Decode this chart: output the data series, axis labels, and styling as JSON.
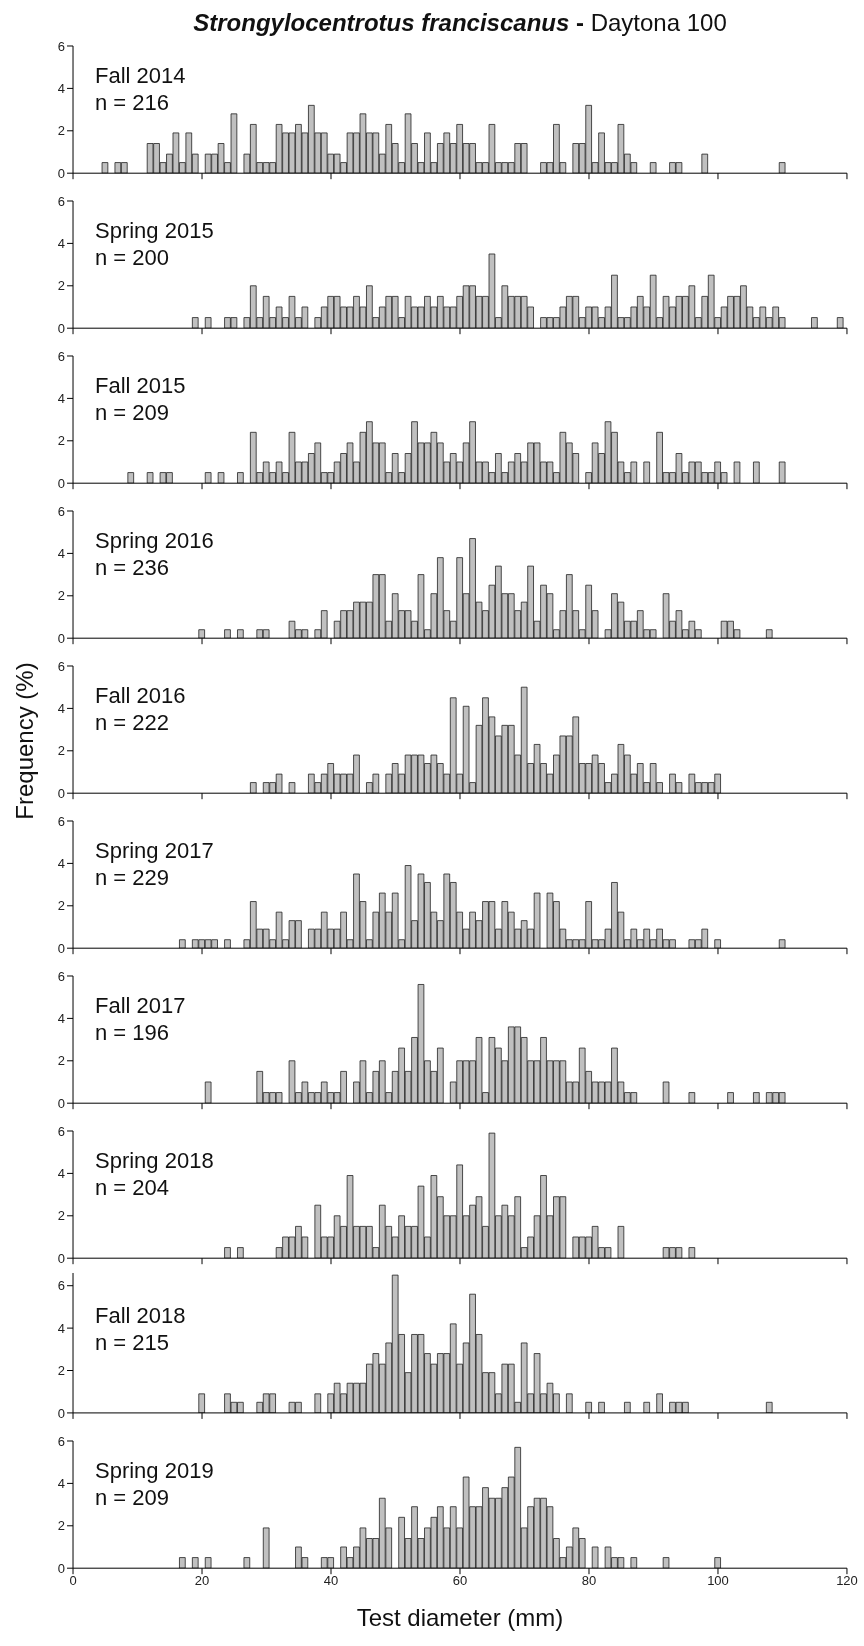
{
  "chart_data": [
    {
      "type": "histogram",
      "title": "Strongylocentrotus franciscanus - Daytona 100",
      "annotations": [
        "Fall 2014",
        "n = 216"
      ],
      "color": "#c0c0c0",
      "xlim": [
        0,
        120
      ],
      "xticks": [
        0,
        20,
        40,
        60,
        80,
        100,
        120
      ],
      "ylim": [
        0,
        6
      ],
      "yticks": [
        0,
        2,
        4,
        6
      ],
      "tick_labels": "y",
      "bins": [
        0.5,
        1.5,
        2.5,
        3.5,
        4.5,
        5.5,
        6.5,
        7.5,
        8.5,
        9.5,
        10.5,
        11.5,
        12.5,
        13.5,
        14.5,
        15.5,
        16.5,
        17.5,
        18.5,
        19.5,
        20.5,
        21.5,
        22.5,
        23.5,
        24.5,
        25.5,
        26.5,
        27.5,
        28.5,
        29.5,
        30.5,
        31.5,
        32.5,
        33.5,
        34.5,
        35.5,
        36.5,
        37.5,
        38.5,
        39.5,
        40.5,
        41.5,
        42.5,
        43.5,
        44.5,
        45.5,
        46.5,
        47.5,
        48.5,
        49.5,
        50.5,
        51.5,
        52.5,
        53.5,
        54.5,
        55.5,
        56.5,
        57.5,
        58.5,
        59.5,
        60.5,
        61.5,
        62.5,
        63.5,
        64.5,
        65.5,
        66.5,
        67.5,
        68.5,
        69.5,
        70.5,
        71.5,
        72.5,
        73.5,
        74.5,
        75.5,
        76.5,
        77.5,
        78.5,
        79.5,
        80.5,
        81.5,
        82.5,
        83.5,
        84.5,
        85.5,
        86.5,
        87.5,
        88.5,
        89.5,
        90.5,
        91.5,
        92.5,
        93.5,
        94.5,
        95.5,
        96.5,
        97.5,
        98.5,
        99.5,
        100.5,
        101.5,
        102.5,
        103.5,
        104.5,
        105.5,
        106.5,
        107.5,
        108.5,
        109.5,
        110.5,
        111.5,
        112.5,
        113.5,
        114.5,
        115.5,
        116.5,
        117.5,
        118.5,
        119.5
      ],
      "values": [
        0,
        0,
        0,
        0,
        0.5,
        0,
        0.5,
        0.5,
        0,
        0,
        0,
        1.4,
        1.4,
        0.5,
        0.9,
        1.9,
        0.5,
        1.9,
        0.9,
        0,
        0.9,
        0.9,
        1.4,
        0.5,
        2.8,
        0,
        0.9,
        2.3,
        0.5,
        0.5,
        0.5,
        2.3,
        1.9,
        1.9,
        2.3,
        1.9,
        3.2,
        1.9,
        1.9,
        0.9,
        0.9,
        0.5,
        1.9,
        1.9,
        2.8,
        1.9,
        1.9,
        0.9,
        2.3,
        1.4,
        0.5,
        2.8,
        1.4,
        0.5,
        1.9,
        0.5,
        1.4,
        1.9,
        1.4,
        2.3,
        1.4,
        1.4,
        0.5,
        0.5,
        2.3,
        0.5,
        0.5,
        0.5,
        1.4,
        1.4,
        0,
        0,
        0.5,
        0.5,
        2.3,
        0.5,
        0,
        1.4,
        1.4,
        3.2,
        0.5,
        1.9,
        0.5,
        0.5,
        2.3,
        0.9,
        0.5,
        0,
        0,
        0.5,
        0,
        0,
        0.5,
        0.5,
        0,
        0,
        0,
        0.9,
        0,
        0,
        0,
        0,
        0,
        0,
        0,
        0,
        0,
        0,
        0,
        0.5,
        0,
        0,
        0,
        0,
        0,
        0,
        0,
        0,
        0
      ]
    },
    {
      "type": "histogram",
      "annotations": [
        "Spring 2015",
        "n = 200"
      ],
      "color": "#c0c0c0",
      "xlim": [
        0,
        120
      ],
      "xticks": [
        0,
        20,
        40,
        60,
        80,
        100,
        120
      ],
      "ylim": [
        0,
        6
      ],
      "yticks": [
        0,
        2,
        4,
        6
      ],
      "tick_labels": "y",
      "bins": [
        0.5,
        1.5,
        2.5,
        3.5,
        4.5,
        5.5,
        6.5,
        7.5,
        8.5,
        9.5,
        10.5,
        11.5,
        12.5,
        13.5,
        14.5,
        15.5,
        16.5,
        17.5,
        18.5,
        19.5,
        20.5,
        21.5,
        22.5,
        23.5,
        24.5,
        25.5,
        26.5,
        27.5,
        28.5,
        29.5,
        30.5,
        31.5,
        32.5,
        33.5,
        34.5,
        35.5,
        36.5,
        37.5,
        38.5,
        39.5,
        40.5,
        41.5,
        42.5,
        43.5,
        44.5,
        45.5,
        46.5,
        47.5,
        48.5,
        49.5,
        50.5,
        51.5,
        52.5,
        53.5,
        54.5,
        55.5,
        56.5,
        57.5,
        58.5,
        59.5,
        60.5,
        61.5,
        62.5,
        63.5,
        64.5,
        65.5,
        66.5,
        67.5,
        68.5,
        69.5,
        70.5,
        71.5,
        72.5,
        73.5,
        74.5,
        75.5,
        76.5,
        77.5,
        78.5,
        79.5,
        80.5,
        81.5,
        82.5,
        83.5,
        84.5,
        85.5,
        86.5,
        87.5,
        88.5,
        89.5,
        90.5,
        91.5,
        92.5,
        93.5,
        94.5,
        95.5,
        96.5,
        97.5,
        98.5,
        99.5,
        100.5,
        101.5,
        102.5,
        103.5,
        104.5,
        105.5,
        106.5,
        107.5,
        108.5,
        109.5,
        110.5,
        111.5,
        112.5,
        113.5,
        114.5,
        115.5,
        116.5,
        117.5,
        118.5,
        119.5
      ],
      "values": [
        0,
        0,
        0,
        0,
        0,
        0,
        0,
        0,
        0,
        0,
        0,
        0,
        0,
        0,
        0,
        0,
        0,
        0,
        0.5,
        0,
        0.5,
        0,
        0,
        0.5,
        0.5,
        0,
        0.5,
        2,
        0.5,
        1.5,
        0.5,
        1,
        0.5,
        1.5,
        0.5,
        1,
        0,
        0.5,
        1,
        1.5,
        1.5,
        1,
        1,
        1.5,
        1,
        2,
        0.5,
        1,
        1.5,
        1.5,
        0.5,
        1.5,
        1,
        1,
        1.5,
        1,
        1.5,
        1,
        1,
        1.5,
        2,
        2,
        1.5,
        1.5,
        3.5,
        0.5,
        2,
        1.5,
        1.5,
        1.5,
        1,
        0,
        0.5,
        0.5,
        0.5,
        1,
        1.5,
        1.5,
        0.5,
        1,
        1,
        0.5,
        1,
        2.5,
        0.5,
        0.5,
        1,
        1.5,
        1,
        2.5,
        0.5,
        1.5,
        1,
        1.5,
        1.5,
        2,
        0.5,
        1.5,
        2.5,
        0.5,
        1,
        1.5,
        1.5,
        2,
        1,
        0.5,
        1,
        0.5,
        1,
        0.5,
        0,
        0,
        0,
        0,
        0.5,
        0,
        0,
        0,
        0.5
      ]
    },
    {
      "type": "histogram",
      "annotations": [
        "Fall 2015",
        "n = 209"
      ],
      "color": "#c0c0c0",
      "xlim": [
        0,
        120
      ],
      "xticks": [
        0,
        20,
        40,
        60,
        80,
        100,
        120
      ],
      "ylim": [
        0,
        6
      ],
      "yticks": [
        0,
        2,
        4,
        6
      ],
      "tick_labels": "y",
      "bins": [
        0.5,
        1.5,
        2.5,
        3.5,
        4.5,
        5.5,
        6.5,
        7.5,
        8.5,
        9.5,
        10.5,
        11.5,
        12.5,
        13.5,
        14.5,
        15.5,
        16.5,
        17.5,
        18.5,
        19.5,
        20.5,
        21.5,
        22.5,
        23.5,
        24.5,
        25.5,
        26.5,
        27.5,
        28.5,
        29.5,
        30.5,
        31.5,
        32.5,
        33.5,
        34.5,
        35.5,
        36.5,
        37.5,
        38.5,
        39.5,
        40.5,
        41.5,
        42.5,
        43.5,
        44.5,
        45.5,
        46.5,
        47.5,
        48.5,
        49.5,
        50.5,
        51.5,
        52.5,
        53.5,
        54.5,
        55.5,
        56.5,
        57.5,
        58.5,
        59.5,
        60.5,
        61.5,
        62.5,
        63.5,
        64.5,
        65.5,
        66.5,
        67.5,
        68.5,
        69.5,
        70.5,
        71.5,
        72.5,
        73.5,
        74.5,
        75.5,
        76.5,
        77.5,
        78.5,
        79.5,
        80.5,
        81.5,
        82.5,
        83.5,
        84.5,
        85.5,
        86.5,
        87.5,
        88.5,
        89.5,
        90.5,
        91.5,
        92.5,
        93.5,
        94.5,
        95.5,
        96.5,
        97.5,
        98.5,
        99.5,
        100.5,
        101.5,
        102.5,
        103.5,
        104.5,
        105.5,
        106.5,
        107.5,
        108.5,
        109.5,
        110.5,
        111.5,
        112.5,
        113.5,
        114.5,
        115.5,
        116.5,
        117.5,
        118.5,
        119.5
      ],
      "values": [
        0,
        0,
        0,
        0,
        0,
        0,
        0,
        0,
        0.5,
        0,
        0,
        0.5,
        0,
        0.5,
        0.5,
        0,
        0,
        0,
        0,
        0,
        0.5,
        0,
        0.5,
        0,
        0,
        0.5,
        0,
        2.4,
        0.5,
        1,
        0.5,
        1,
        0.5,
        2.4,
        1,
        1,
        1.4,
        1.9,
        0.5,
        0.5,
        1,
        1.4,
        1.9,
        1,
        2.4,
        2.9,
        1.9,
        1.9,
        0.5,
        1.4,
        0.5,
        1.4,
        2.9,
        1.9,
        1.9,
        2.4,
        1.9,
        1,
        1.4,
        1,
        1.9,
        2.9,
        1,
        1,
        0.5,
        1.4,
        0.5,
        1,
        1.4,
        1,
        1.9,
        1.9,
        1,
        1,
        0.5,
        2.4,
        1.9,
        1.4,
        0,
        0.5,
        1.9,
        1.4,
        2.9,
        2.4,
        1,
        0.5,
        1,
        0,
        1,
        0,
        2.4,
        0.5,
        0.5,
        1.4,
        0.5,
        1,
        1,
        0.5,
        0.5,
        1,
        0.5,
        0,
        1,
        0,
        0,
        1,
        0,
        0,
        0,
        1,
        0,
        0,
        0,
        0,
        0,
        0,
        0,
        0,
        0
      ]
    },
    {
      "type": "histogram",
      "annotations": [
        "Spring 2016",
        "n = 236"
      ],
      "color": "#c0c0c0",
      "xlim": [
        0,
        120
      ],
      "xticks": [
        0,
        20,
        40,
        60,
        80,
        100,
        120
      ],
      "ylim": [
        0,
        6
      ],
      "yticks": [
        0,
        2,
        4,
        6
      ],
      "tick_labels": "y",
      "bins": [
        0.5,
        1.5,
        2.5,
        3.5,
        4.5,
        5.5,
        6.5,
        7.5,
        8.5,
        9.5,
        10.5,
        11.5,
        12.5,
        13.5,
        14.5,
        15.5,
        16.5,
        17.5,
        18.5,
        19.5,
        20.5,
        21.5,
        22.5,
        23.5,
        24.5,
        25.5,
        26.5,
        27.5,
        28.5,
        29.5,
        30.5,
        31.5,
        32.5,
        33.5,
        34.5,
        35.5,
        36.5,
        37.5,
        38.5,
        39.5,
        40.5,
        41.5,
        42.5,
        43.5,
        44.5,
        45.5,
        46.5,
        47.5,
        48.5,
        49.5,
        50.5,
        51.5,
        52.5,
        53.5,
        54.5,
        55.5,
        56.5,
        57.5,
        58.5,
        59.5,
        60.5,
        61.5,
        62.5,
        63.5,
        64.5,
        65.5,
        66.5,
        67.5,
        68.5,
        69.5,
        70.5,
        71.5,
        72.5,
        73.5,
        74.5,
        75.5,
        76.5,
        77.5,
        78.5,
        79.5,
        80.5,
        81.5,
        82.5,
        83.5,
        84.5,
        85.5,
        86.5,
        87.5,
        88.5,
        89.5,
        90.5,
        91.5,
        92.5,
        93.5,
        94.5,
        95.5,
        96.5,
        97.5,
        98.5,
        99.5,
        100.5,
        101.5,
        102.5,
        103.5,
        104.5,
        105.5,
        106.5,
        107.5,
        108.5,
        109.5,
        110.5,
        111.5,
        112.5,
        113.5,
        114.5,
        115.5,
        116.5,
        117.5,
        118.5,
        119.5
      ],
      "values": [
        0,
        0,
        0,
        0,
        0,
        0,
        0,
        0,
        0,
        0,
        0,
        0,
        0,
        0,
        0,
        0,
        0,
        0,
        0,
        0.4,
        0,
        0,
        0,
        0.4,
        0,
        0.4,
        0,
        0,
        0.4,
        0.4,
        0,
        0,
        0,
        0.8,
        0.4,
        0.4,
        0,
        0.4,
        1.3,
        0,
        0.8,
        1.3,
        1.3,
        1.7,
        1.7,
        1.7,
        3.0,
        3.0,
        0.8,
        2.1,
        1.3,
        1.3,
        0.8,
        3.0,
        0.4,
        2.1,
        3.8,
        1.3,
        0.8,
        3.8,
        2.1,
        4.7,
        1.7,
        1.3,
        2.5,
        3.4,
        2.1,
        2.1,
        1.3,
        1.7,
        3.4,
        0.8,
        2.5,
        2.1,
        0.4,
        1.3,
        3.0,
        1.3,
        0.4,
        2.5,
        1.3,
        0,
        0.4,
        2.1,
        1.7,
        0.8,
        0.8,
        1.3,
        0.4,
        0.4,
        0,
        2.1,
        0.8,
        1.3,
        0.4,
        0.8,
        0.4,
        0,
        0,
        0,
        0.8,
        0.8,
        0.4,
        0,
        0,
        0,
        0,
        0.4,
        0,
        0,
        0,
        0,
        0,
        0,
        0,
        0,
        0,
        0,
        0
      ]
    },
    {
      "type": "histogram",
      "ylabel": "Frequency (%)",
      "annotations": [
        "Fall 2016",
        "n = 222"
      ],
      "color": "#c0c0c0",
      "xlim": [
        0,
        120
      ],
      "xticks": [
        0,
        20,
        40,
        60,
        80,
        100,
        120
      ],
      "ylim": [
        0,
        6
      ],
      "yticks": [
        0,
        2,
        4,
        6
      ],
      "tick_labels": "y",
      "bins": [
        0.5,
        1.5,
        2.5,
        3.5,
        4.5,
        5.5,
        6.5,
        7.5,
        8.5,
        9.5,
        10.5,
        11.5,
        12.5,
        13.5,
        14.5,
        15.5,
        16.5,
        17.5,
        18.5,
        19.5,
        20.5,
        21.5,
        22.5,
        23.5,
        24.5,
        25.5,
        26.5,
        27.5,
        28.5,
        29.5,
        30.5,
        31.5,
        32.5,
        33.5,
        34.5,
        35.5,
        36.5,
        37.5,
        38.5,
        39.5,
        40.5,
        41.5,
        42.5,
        43.5,
        44.5,
        45.5,
        46.5,
        47.5,
        48.5,
        49.5,
        50.5,
        51.5,
        52.5,
        53.5,
        54.5,
        55.5,
        56.5,
        57.5,
        58.5,
        59.5,
        60.5,
        61.5,
        62.5,
        63.5,
        64.5,
        65.5,
        66.5,
        67.5,
        68.5,
        69.5,
        70.5,
        71.5,
        72.5,
        73.5,
        74.5,
        75.5,
        76.5,
        77.5,
        78.5,
        79.5,
        80.5,
        81.5,
        82.5,
        83.5,
        84.5,
        85.5,
        86.5,
        87.5,
        88.5,
        89.5,
        90.5,
        91.5,
        92.5,
        93.5,
        94.5,
        95.5,
        96.5,
        97.5,
        98.5,
        99.5,
        100.5,
        101.5,
        102.5,
        103.5,
        104.5,
        105.5,
        106.5,
        107.5,
        108.5,
        109.5,
        110.5,
        111.5,
        112.5,
        113.5,
        114.5,
        115.5,
        116.5,
        117.5,
        118.5,
        119.5
      ],
      "values": [
        0,
        0,
        0,
        0,
        0,
        0,
        0,
        0,
        0,
        0,
        0,
        0,
        0,
        0,
        0,
        0,
        0,
        0,
        0,
        0,
        0,
        0,
        0,
        0,
        0,
        0,
        0,
        0.5,
        0,
        0.5,
        0.5,
        0.9,
        0,
        0.5,
        0,
        0,
        0.9,
        0.5,
        0.9,
        1.4,
        0.9,
        0.9,
        0.9,
        1.8,
        0,
        0.5,
        0.9,
        0,
        0.9,
        1.4,
        0.9,
        1.8,
        1.8,
        1.8,
        1.4,
        1.8,
        1.4,
        0.9,
        4.5,
        0.9,
        4.1,
        0.5,
        3.2,
        4.5,
        3.6,
        2.7,
        3.2,
        3.2,
        1.8,
        5.0,
        1.4,
        2.3,
        1.4,
        0.9,
        1.8,
        2.7,
        2.7,
        3.6,
        1.4,
        1.4,
        1.8,
        1.4,
        0.5,
        0.9,
        2.3,
        1.8,
        0.9,
        1.4,
        0.5,
        1.4,
        0.5,
        0,
        0.9,
        0.5,
        0,
        0.9,
        0.5,
        0.5,
        0.5,
        0.9,
        0,
        0,
        0,
        0,
        0,
        0,
        0,
        0,
        0,
        0,
        0,
        0,
        0,
        0,
        0,
        0,
        0,
        0,
        0
      ]
    },
    {
      "type": "histogram",
      "annotations": [
        "Spring 2017",
        "n = 229"
      ],
      "color": "#c0c0c0",
      "xlim": [
        0,
        120
      ],
      "xticks": [
        0,
        20,
        40,
        60,
        80,
        100,
        120
      ],
      "ylim": [
        0,
        6
      ],
      "yticks": [
        0,
        2,
        4,
        6
      ],
      "tick_labels": "y",
      "bins": [
        0.5,
        1.5,
        2.5,
        3.5,
        4.5,
        5.5,
        6.5,
        7.5,
        8.5,
        9.5,
        10.5,
        11.5,
        12.5,
        13.5,
        14.5,
        15.5,
        16.5,
        17.5,
        18.5,
        19.5,
        20.5,
        21.5,
        22.5,
        23.5,
        24.5,
        25.5,
        26.5,
        27.5,
        28.5,
        29.5,
        30.5,
        31.5,
        32.5,
        33.5,
        34.5,
        35.5,
        36.5,
        37.5,
        38.5,
        39.5,
        40.5,
        41.5,
        42.5,
        43.5,
        44.5,
        45.5,
        46.5,
        47.5,
        48.5,
        49.5,
        50.5,
        51.5,
        52.5,
        53.5,
        54.5,
        55.5,
        56.5,
        57.5,
        58.5,
        59.5,
        60.5,
        61.5,
        62.5,
        63.5,
        64.5,
        65.5,
        66.5,
        67.5,
        68.5,
        69.5,
        70.5,
        71.5,
        72.5,
        73.5,
        74.5,
        75.5,
        76.5,
        77.5,
        78.5,
        79.5,
        80.5,
        81.5,
        82.5,
        83.5,
        84.5,
        85.5,
        86.5,
        87.5,
        88.5,
        89.5,
        90.5,
        91.5,
        92.5,
        93.5,
        94.5,
        95.5,
        96.5,
        97.5,
        98.5,
        99.5,
        100.5,
        101.5,
        102.5,
        103.5,
        104.5,
        105.5,
        106.5,
        107.5,
        108.5,
        109.5,
        110.5,
        111.5,
        112.5,
        113.5,
        114.5,
        115.5,
        116.5,
        117.5,
        118.5,
        119.5
      ],
      "values": [
        0,
        0,
        0,
        0,
        0,
        0,
        0,
        0,
        0,
        0,
        0,
        0,
        0,
        0,
        0,
        0,
        0.4,
        0,
        0.4,
        0.4,
        0.4,
        0.4,
        0,
        0.4,
        0,
        0,
        0.4,
        2.2,
        0.9,
        0.9,
        0.4,
        1.7,
        0.4,
        1.3,
        1.3,
        0,
        0.9,
        0.9,
        1.7,
        0.9,
        0.9,
        1.7,
        0.4,
        3.5,
        2.2,
        0.4,
        1.7,
        2.6,
        1.7,
        2.6,
        0.4,
        3.9,
        1.3,
        3.5,
        3.1,
        1.7,
        1.3,
        3.5,
        3.1,
        1.7,
        0.9,
        1.7,
        1.3,
        2.2,
        2.2,
        0.9,
        2.2,
        1.7,
        0.9,
        1.3,
        0.9,
        2.6,
        0,
        2.6,
        2.2,
        0.9,
        0.4,
        0.4,
        0.4,
        2.2,
        0.4,
        0.4,
        0.9,
        3.1,
        1.7,
        0.4,
        0.9,
        0.4,
        0.9,
        0.4,
        0.9,
        0.4,
        0.4,
        0,
        0,
        0.4,
        0.4,
        0.9,
        0,
        0.4,
        0,
        0,
        0,
        0,
        0,
        0,
        0,
        0,
        0,
        0.4,
        0,
        0,
        0,
        0,
        0,
        0,
        0,
        0,
        0
      ]
    },
    {
      "type": "histogram",
      "annotations": [
        "Fall 2017",
        "n = 196"
      ],
      "color": "#c0c0c0",
      "xlim": [
        0,
        120
      ],
      "xticks": [
        0,
        20,
        40,
        60,
        80,
        100,
        120
      ],
      "ylim": [
        0,
        6
      ],
      "yticks": [
        0,
        2,
        4,
        6
      ],
      "tick_labels": "y",
      "bins": [
        0.5,
        1.5,
        2.5,
        3.5,
        4.5,
        5.5,
        6.5,
        7.5,
        8.5,
        9.5,
        10.5,
        11.5,
        12.5,
        13.5,
        14.5,
        15.5,
        16.5,
        17.5,
        18.5,
        19.5,
        20.5,
        21.5,
        22.5,
        23.5,
        24.5,
        25.5,
        26.5,
        27.5,
        28.5,
        29.5,
        30.5,
        31.5,
        32.5,
        33.5,
        34.5,
        35.5,
        36.5,
        37.5,
        38.5,
        39.5,
        40.5,
        41.5,
        42.5,
        43.5,
        44.5,
        45.5,
        46.5,
        47.5,
        48.5,
        49.5,
        50.5,
        51.5,
        52.5,
        53.5,
        54.5,
        55.5,
        56.5,
        57.5,
        58.5,
        59.5,
        60.5,
        61.5,
        62.5,
        63.5,
        64.5,
        65.5,
        66.5,
        67.5,
        68.5,
        69.5,
        70.5,
        71.5,
        72.5,
        73.5,
        74.5,
        75.5,
        76.5,
        77.5,
        78.5,
        79.5,
        80.5,
        81.5,
        82.5,
        83.5,
        84.5,
        85.5,
        86.5,
        87.5,
        88.5,
        89.5,
        90.5,
        91.5,
        92.5,
        93.5,
        94.5,
        95.5,
        96.5,
        97.5,
        98.5,
        99.5,
        100.5,
        101.5,
        102.5,
        103.5,
        104.5,
        105.5,
        106.5,
        107.5,
        108.5,
        109.5,
        110.5,
        111.5,
        112.5,
        113.5,
        114.5,
        115.5,
        116.5,
        117.5,
        118.5,
        119.5
      ],
      "values": [
        0,
        0,
        0,
        0,
        0,
        0,
        0,
        0,
        0,
        0,
        0,
        0,
        0,
        0,
        0,
        0,
        0,
        0,
        0,
        0,
        1.0,
        0,
        0,
        0,
        0,
        0,
        0,
        0,
        1.5,
        0.5,
        0.5,
        0.5,
        0,
        2.0,
        0.5,
        1.0,
        0.5,
        0.5,
        1.0,
        0.5,
        0.5,
        1.5,
        0,
        1.0,
        2.0,
        0.5,
        1.5,
        2.0,
        0.5,
        1.5,
        2.6,
        1.5,
        3.1,
        5.6,
        2.0,
        1.5,
        2.6,
        0,
        1.0,
        2.0,
        2.0,
        2.0,
        3.1,
        0.5,
        3.1,
        2.6,
        2.0,
        3.6,
        3.6,
        3.1,
        2.0,
        2.0,
        3.1,
        2.0,
        2.0,
        2.0,
        1.0,
        1.0,
        2.6,
        1.5,
        1.0,
        1.0,
        1.0,
        2.6,
        1.0,
        0.5,
        0.5,
        0,
        0,
        0,
        0,
        1.0,
        0,
        0,
        0,
        0.5,
        0,
        0,
        0,
        0,
        0,
        0.5,
        0,
        0,
        0,
        0.5,
        0,
        0.5,
        0.5,
        0.5,
        0,
        0,
        0,
        0,
        0,
        0,
        0,
        0,
        0
      ]
    },
    {
      "type": "histogram",
      "annotations": [
        "Spring 2018",
        "n = 204"
      ],
      "color": "#c0c0c0",
      "xlim": [
        0,
        120
      ],
      "xticks": [
        0,
        20,
        40,
        60,
        80,
        100,
        120
      ],
      "ylim": [
        0,
        6
      ],
      "yticks": [
        0,
        2,
        4,
        6
      ],
      "tick_labels": "y",
      "bins": [
        0.5,
        1.5,
        2.5,
        3.5,
        4.5,
        5.5,
        6.5,
        7.5,
        8.5,
        9.5,
        10.5,
        11.5,
        12.5,
        13.5,
        14.5,
        15.5,
        16.5,
        17.5,
        18.5,
        19.5,
        20.5,
        21.5,
        22.5,
        23.5,
        24.5,
        25.5,
        26.5,
        27.5,
        28.5,
        29.5,
        30.5,
        31.5,
        32.5,
        33.5,
        34.5,
        35.5,
        36.5,
        37.5,
        38.5,
        39.5,
        40.5,
        41.5,
        42.5,
        43.5,
        44.5,
        45.5,
        46.5,
        47.5,
        48.5,
        49.5,
        50.5,
        51.5,
        52.5,
        53.5,
        54.5,
        55.5,
        56.5,
        57.5,
        58.5,
        59.5,
        60.5,
        61.5,
        62.5,
        63.5,
        64.5,
        65.5,
        66.5,
        67.5,
        68.5,
        69.5,
        70.5,
        71.5,
        72.5,
        73.5,
        74.5,
        75.5,
        76.5,
        77.5,
        78.5,
        79.5,
        80.5,
        81.5,
        82.5,
        83.5,
        84.5,
        85.5,
        86.5,
        87.5,
        88.5,
        89.5,
        90.5,
        91.5,
        92.5,
        93.5,
        94.5,
        95.5,
        96.5,
        97.5,
        98.5,
        99.5,
        100.5,
        101.5,
        102.5,
        103.5,
        104.5,
        105.5,
        106.5,
        107.5,
        108.5,
        109.5,
        110.5,
        111.5,
        112.5,
        113.5,
        114.5,
        115.5,
        116.5,
        117.5,
        118.5,
        119.5
      ],
      "values": [
        0,
        0,
        0,
        0,
        0,
        0,
        0,
        0,
        0,
        0,
        0,
        0,
        0,
        0,
        0,
        0,
        0,
        0,
        0,
        0,
        0,
        0,
        0,
        0.5,
        0,
        0.5,
        0,
        0,
        0,
        0,
        0,
        0.5,
        1.0,
        1.0,
        1.5,
        1.0,
        0,
        2.5,
        1.0,
        1.0,
        2.0,
        1.5,
        3.9,
        1.5,
        1.5,
        1.5,
        0.5,
        2.5,
        1.5,
        1.0,
        2.0,
        1.5,
        1.5,
        3.4,
        1.0,
        3.9,
        2.9,
        2.0,
        2.0,
        4.4,
        2.0,
        2.5,
        2.9,
        1.5,
        5.9,
        2.0,
        2.5,
        2.0,
        2.9,
        0.5,
        1.0,
        2.0,
        3.9,
        2.0,
        2.9,
        2.9,
        0,
        1.0,
        1.0,
        1.0,
        1.5,
        0.5,
        0.5,
        0,
        1.5,
        0,
        0,
        0,
        0,
        0,
        0,
        0.5,
        0.5,
        0.5,
        0,
        0.5,
        0,
        0,
        0,
        0,
        0,
        0,
        0,
        0,
        0,
        0,
        0,
        0,
        0,
        0,
        0,
        0,
        0,
        0,
        0,
        0,
        0,
        0,
        0
      ]
    },
    {
      "type": "histogram",
      "annotations": [
        "Fall 2018",
        "n = 215"
      ],
      "color": "#c0c0c0",
      "xlim": [
        0,
        120
      ],
      "xticks": [
        0,
        20,
        40,
        60,
        80,
        100,
        120
      ],
      "ylim": [
        0,
        6.6
      ],
      "yticks": [
        0,
        2,
        4,
        6
      ],
      "tick_labels": "y",
      "bins": [
        0.5,
        1.5,
        2.5,
        3.5,
        4.5,
        5.5,
        6.5,
        7.5,
        8.5,
        9.5,
        10.5,
        11.5,
        12.5,
        13.5,
        14.5,
        15.5,
        16.5,
        17.5,
        18.5,
        19.5,
        20.5,
        21.5,
        22.5,
        23.5,
        24.5,
        25.5,
        26.5,
        27.5,
        28.5,
        29.5,
        30.5,
        31.5,
        32.5,
        33.5,
        34.5,
        35.5,
        36.5,
        37.5,
        38.5,
        39.5,
        40.5,
        41.5,
        42.5,
        43.5,
        44.5,
        45.5,
        46.5,
        47.5,
        48.5,
        49.5,
        50.5,
        51.5,
        52.5,
        53.5,
        54.5,
        55.5,
        56.5,
        57.5,
        58.5,
        59.5,
        60.5,
        61.5,
        62.5,
        63.5,
        64.5,
        65.5,
        66.5,
        67.5,
        68.5,
        69.5,
        70.5,
        71.5,
        72.5,
        73.5,
        74.5,
        75.5,
        76.5,
        77.5,
        78.5,
        79.5,
        80.5,
        81.5,
        82.5,
        83.5,
        84.5,
        85.5,
        86.5,
        87.5,
        88.5,
        89.5,
        90.5,
        91.5,
        92.5,
        93.5,
        94.5,
        95.5,
        96.5,
        97.5,
        98.5,
        99.5,
        100.5,
        101.5,
        102.5,
        103.5,
        104.5,
        105.5,
        106.5,
        107.5,
        108.5,
        109.5,
        110.5,
        111.5,
        112.5,
        113.5,
        114.5,
        115.5,
        116.5,
        117.5,
        118.5,
        119.5
      ],
      "values": [
        0,
        0,
        0,
        0,
        0,
        0,
        0,
        0,
        0,
        0,
        0,
        0,
        0,
        0,
        0,
        0,
        0,
        0,
        0,
        0.9,
        0,
        0,
        0,
        0.9,
        0.5,
        0.5,
        0,
        0,
        0.5,
        0.9,
        0.9,
        0,
        0,
        0.5,
        0.5,
        0,
        0,
        0.9,
        0,
        0.9,
        1.4,
        0.9,
        1.4,
        1.4,
        1.4,
        2.3,
        2.8,
        2.3,
        3.3,
        6.5,
        3.7,
        1.9,
        3.7,
        3.7,
        2.8,
        2.3,
        2.8,
        2.8,
        4.2,
        2.3,
        3.3,
        5.6,
        3.7,
        1.9,
        1.9,
        0.9,
        2.3,
        2.3,
        0.5,
        3.3,
        0.9,
        2.8,
        0.9,
        1.4,
        0.9,
        0,
        0.9,
        0,
        0,
        0.5,
        0,
        0.5,
        0,
        0,
        0,
        0.5,
        0,
        0,
        0.5,
        0,
        0.9,
        0,
        0.5,
        0.5,
        0.5,
        0,
        0,
        0,
        0,
        0,
        0,
        0,
        0,
        0,
        0,
        0,
        0,
        0.5,
        0,
        0,
        0,
        0,
        0,
        0,
        0,
        0,
        0,
        0,
        0
      ]
    },
    {
      "type": "histogram",
      "xlabel": "Test diameter (mm)",
      "annotations": [
        "Spring 2019",
        "n = 209"
      ],
      "color": "#c0c0c0",
      "xlim": [
        0,
        120
      ],
      "xticks": [
        0,
        20,
        40,
        60,
        80,
        100,
        120
      ],
      "ylim": [
        0,
        6
      ],
      "yticks": [
        0,
        2,
        4,
        6
      ],
      "bins": [
        0.5,
        1.5,
        2.5,
        3.5,
        4.5,
        5.5,
        6.5,
        7.5,
        8.5,
        9.5,
        10.5,
        11.5,
        12.5,
        13.5,
        14.5,
        15.5,
        16.5,
        17.5,
        18.5,
        19.5,
        20.5,
        21.5,
        22.5,
        23.5,
        24.5,
        25.5,
        26.5,
        27.5,
        28.5,
        29.5,
        30.5,
        31.5,
        32.5,
        33.5,
        34.5,
        35.5,
        36.5,
        37.5,
        38.5,
        39.5,
        40.5,
        41.5,
        42.5,
        43.5,
        44.5,
        45.5,
        46.5,
        47.5,
        48.5,
        49.5,
        50.5,
        51.5,
        52.5,
        53.5,
        54.5,
        55.5,
        56.5,
        57.5,
        58.5,
        59.5,
        60.5,
        61.5,
        62.5,
        63.5,
        64.5,
        65.5,
        66.5,
        67.5,
        68.5,
        69.5,
        70.5,
        71.5,
        72.5,
        73.5,
        74.5,
        75.5,
        76.5,
        77.5,
        78.5,
        79.5,
        80.5,
        81.5,
        82.5,
        83.5,
        84.5,
        85.5,
        86.5,
        87.5,
        88.5,
        89.5,
        90.5,
        91.5,
        92.5,
        93.5,
        94.5,
        95.5,
        96.5,
        97.5,
        98.5,
        99.5,
        100.5,
        101.5,
        102.5,
        103.5,
        104.5,
        105.5,
        106.5,
        107.5,
        108.5,
        109.5,
        110.5,
        111.5,
        112.5,
        113.5,
        114.5,
        115.5,
        116.5,
        117.5,
        118.5,
        119.5
      ],
      "values": [
        0,
        0,
        0,
        0,
        0,
        0,
        0,
        0,
        0,
        0,
        0,
        0,
        0,
        0,
        0,
        0,
        0.5,
        0,
        0.5,
        0,
        0.5,
        0,
        0,
        0,
        0,
        0,
        0.5,
        0,
        0,
        1.9,
        0,
        0,
        0,
        0,
        1.0,
        0.5,
        0,
        0,
        0.5,
        0.5,
        0,
        1.0,
        0.5,
        1.0,
        1.9,
        1.4,
        1.4,
        3.3,
        1.9,
        0,
        2.4,
        1.4,
        2.9,
        1.4,
        1.9,
        2.4,
        2.9,
        1.9,
        2.9,
        1.9,
        4.3,
        2.9,
        2.9,
        3.8,
        3.3,
        3.3,
        3.8,
        4.3,
        5.7,
        1.9,
        2.9,
        3.3,
        3.3,
        2.9,
        1.4,
        0.5,
        1.0,
        1.9,
        1.4,
        0,
        1.0,
        0,
        1.0,
        0.5,
        0.5,
        0,
        0.5,
        0,
        0,
        0,
        0,
        0.5,
        0,
        0,
        0,
        0,
        0,
        0,
        0,
        0.5,
        0,
        0,
        0,
        0,
        0,
        0,
        0,
        0,
        0,
        0,
        0,
        0,
        0,
        0,
        0,
        0,
        0,
        0,
        0
      ]
    }
  ]
}
